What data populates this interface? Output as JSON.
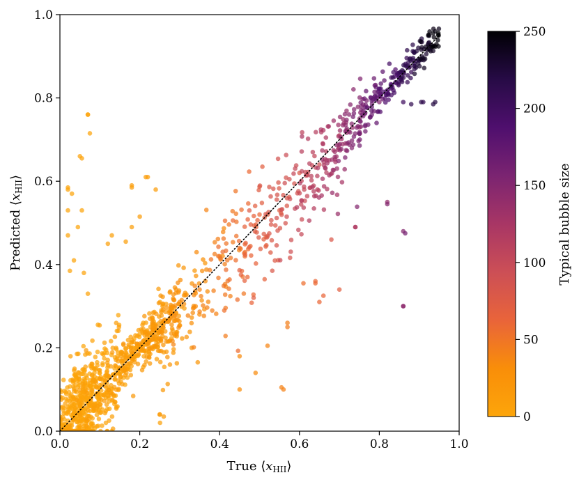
{
  "chart_data": {
    "type": "scatter",
    "title": "",
    "xlabel": "True ⟨x_HII⟩",
    "xlabel_main": "True ⟨",
    "xlabel_var": "x",
    "xlabel_sub": "HII",
    "xlabel_close": "⟩",
    "ylabel": "Predicted ⟨x_HII⟩",
    "ylabel_main": "Predicted ⟨",
    "ylabel_var": "x",
    "ylabel_sub": "HII",
    "ylabel_close": "⟩",
    "xlim": [
      0.0,
      1.0
    ],
    "ylim": [
      0.0,
      1.0
    ],
    "xticks": [
      "0.0",
      "0.2",
      "0.4",
      "0.6",
      "0.8",
      "1.0"
    ],
    "yticks": [
      "0.0",
      "0.2",
      "0.4",
      "0.6",
      "0.8",
      "1.0"
    ],
    "reference_line": {
      "style": "dotted",
      "from": [
        0,
        0
      ],
      "to": [
        0.95,
        0.95
      ],
      "color": "#000000"
    },
    "colorbar": {
      "label": "Typical bubble size",
      "range": [
        0,
        250
      ],
      "ticks": [
        "0",
        "50",
        "100",
        "150",
        "200",
        "250"
      ],
      "colormap": "inferno_r-trunc",
      "stops": [
        "#fca50a",
        "#f98e09",
        "#e9643a",
        "#cc4f56",
        "#a83665",
        "#7b2471",
        "#4f0f6e",
        "#270b46",
        "#000004"
      ]
    },
    "point_count": 1500,
    "points_sample": [
      [
        0.02,
        0.01,
        2
      ],
      [
        0.05,
        0.06,
        5
      ],
      [
        0.1,
        0.11,
        9
      ],
      [
        0.15,
        0.15,
        14
      ],
      [
        0.2,
        0.21,
        20
      ],
      [
        0.25,
        0.24,
        26
      ],
      [
        0.3,
        0.31,
        32
      ],
      [
        0.35,
        0.34,
        38
      ],
      [
        0.4,
        0.42,
        45
      ],
      [
        0.45,
        0.44,
        52
      ],
      [
        0.5,
        0.52,
        60
      ],
      [
        0.55,
        0.53,
        68
      ],
      [
        0.6,
        0.62,
        78
      ],
      [
        0.65,
        0.64,
        90
      ],
      [
        0.7,
        0.71,
        105
      ],
      [
        0.75,
        0.73,
        125
      ],
      [
        0.8,
        0.79,
        150
      ],
      [
        0.85,
        0.86,
        185
      ],
      [
        0.9,
        0.89,
        215
      ],
      [
        0.94,
        0.96,
        245
      ],
      [
        0.07,
        0.76,
        4
      ],
      [
        0.05,
        0.66,
        4
      ],
      [
        0.02,
        0.58,
        3
      ],
      [
        0.18,
        0.59,
        11
      ],
      [
        0.22,
        0.61,
        12
      ],
      [
        0.82,
        0.55,
        140
      ],
      [
        0.86,
        0.48,
        150
      ],
      [
        0.74,
        0.49,
        120
      ],
      [
        0.86,
        0.3,
        140
      ],
      [
        0.56,
        0.1,
        40
      ],
      [
        0.25,
        0.04,
        12
      ],
      [
        0.57,
        0.26,
        42
      ],
      [
        0.64,
        0.36,
        60
      ],
      [
        0.94,
        0.79,
        220
      ],
      [
        0.91,
        0.79,
        210
      ]
    ],
    "outliers": [
      [
        0.07,
        0.76,
        3
      ],
      [
        0.075,
        0.715,
        3
      ],
      [
        0.055,
        0.655,
        4
      ],
      [
        0.02,
        0.585,
        2
      ],
      [
        0.03,
        0.57,
        3
      ],
      [
        0.02,
        0.53,
        2
      ],
      [
        0.055,
        0.53,
        3
      ],
      [
        0.045,
        0.49,
        3
      ],
      [
        0.02,
        0.47,
        3
      ],
      [
        0.18,
        0.585,
        10
      ],
      [
        0.215,
        0.61,
        12
      ],
      [
        0.24,
        0.58,
        12
      ],
      [
        0.2,
        0.515,
        12
      ],
      [
        0.18,
        0.49,
        10
      ],
      [
        0.12,
        0.45,
        8
      ],
      [
        0.165,
        0.455,
        9
      ],
      [
        0.13,
        0.47,
        8
      ],
      [
        0.035,
        0.41,
        3
      ],
      [
        0.025,
        0.385,
        3
      ],
      [
        0.06,
        0.38,
        4
      ],
      [
        0.07,
        0.33,
        4
      ],
      [
        0.82,
        0.545,
        150
      ],
      [
        0.865,
        0.475,
        160
      ],
      [
        0.74,
        0.49,
        120
      ],
      [
        0.86,
        0.3,
        145
      ],
      [
        0.68,
        0.46,
        80
      ],
      [
        0.555,
        0.105,
        40
      ],
      [
        0.45,
        0.1,
        32
      ],
      [
        0.25,
        0.04,
        14
      ],
      [
        0.26,
        0.035,
        14
      ],
      [
        0.57,
        0.25,
        44
      ],
      [
        0.49,
        0.14,
        34
      ],
      [
        0.52,
        0.205,
        38
      ],
      [
        0.45,
        0.18,
        34
      ],
      [
        0.33,
        0.2,
        24
      ],
      [
        0.65,
        0.31,
        60
      ],
      [
        0.64,
        0.355,
        58
      ],
      [
        0.66,
        0.325,
        62
      ],
      [
        0.61,
        0.355,
        55
      ],
      [
        0.7,
        0.34,
        70
      ],
      [
        0.88,
        0.785,
        210
      ],
      [
        0.905,
        0.79,
        215
      ],
      [
        0.935,
        0.785,
        220
      ],
      [
        0.86,
        0.79,
        200
      ]
    ]
  }
}
